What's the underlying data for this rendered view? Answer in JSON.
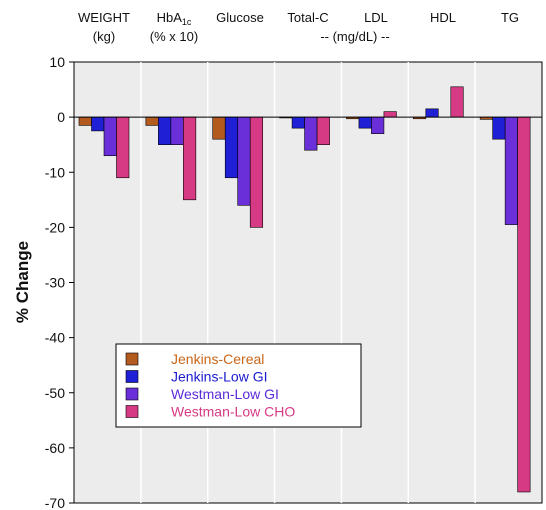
{
  "chart_data": {
    "type": "bar",
    "ylabel": "% Change",
    "ylim": [
      -70,
      10
    ],
    "yticks": [
      10,
      0,
      -10,
      -20,
      -30,
      -40,
      -50,
      -60,
      -70
    ],
    "grid": {
      "vertical_separators": true,
      "horizontal": false
    },
    "plot_background": "#ececec",
    "categories": [
      {
        "id": "weight",
        "line1": "WEIGHT",
        "line2": "(kg)"
      },
      {
        "id": "hba1c",
        "line1": "HbA",
        "line1_sub": "1c",
        "line2": "(% x 10)"
      },
      {
        "id": "glucose",
        "line1": "Glucose",
        "line2": ""
      },
      {
        "id": "totalc",
        "line1": "Total-C",
        "line2": ""
      },
      {
        "id": "ldl",
        "line1": "LDL",
        "line2": ""
      },
      {
        "id": "hdl",
        "line1": "HDL",
        "line2": ""
      },
      {
        "id": "tg",
        "line1": "TG",
        "line2": ""
      }
    ],
    "group_label": "-- (mg/dL) --",
    "series": [
      {
        "name": "Jenkins-Cereal",
        "color": "#b35a1f",
        "label_color": "#c8661a",
        "values": [
          -1.5,
          -1.5,
          -4.0,
          0.0,
          -0.3,
          -0.3,
          -0.4
        ]
      },
      {
        "name": "Jenkins-Low GI",
        "color": "#1f1fd6",
        "label_color": "#1a1ad0",
        "values": [
          -2.5,
          -5.0,
          -11.0,
          -2.0,
          -2.0,
          1.5,
          -4.0
        ]
      },
      {
        "name": "Westman-Low GI",
        "color": "#6a2fd8",
        "label_color": "#5a2ad8",
        "values": [
          -7.0,
          -5.0,
          -16.0,
          -6.0,
          -3.0,
          null,
          -19.5
        ]
      },
      {
        "name": "Westman-Low CHO",
        "color": "#d63a84",
        "label_color": "#d63a84",
        "values": [
          -11.0,
          -15.0,
          -20.0,
          -5.0,
          1.0,
          5.5,
          -68.0
        ]
      }
    ],
    "legend_position": "lower-left"
  }
}
